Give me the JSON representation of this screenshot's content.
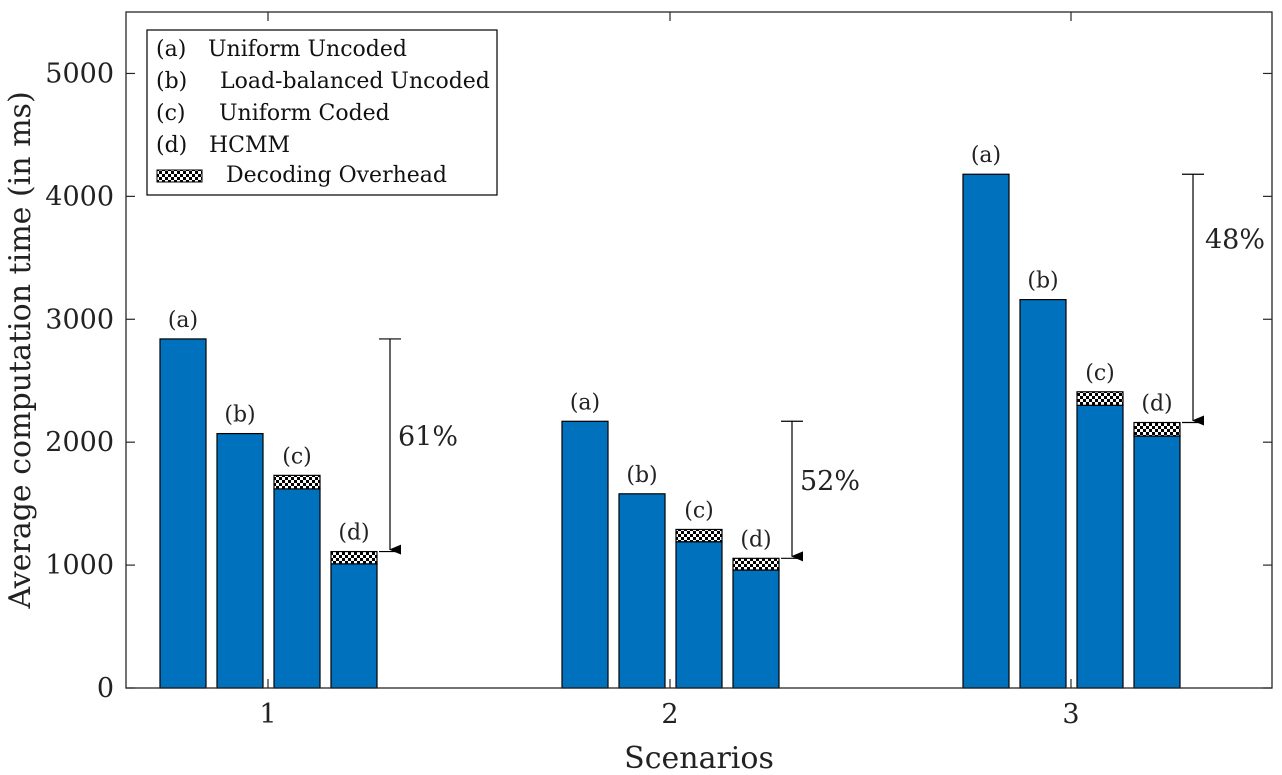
{
  "chart_data": {
    "type": "bar",
    "xlabel": "Scenarios",
    "ylabel": "Average computation time (in ms)",
    "ylim": [
      0,
      5500
    ],
    "yticks": [
      0,
      1000,
      2000,
      3000,
      4000,
      5000
    ],
    "categories": [
      "1",
      "2",
      "3"
    ],
    "bar_labels": [
      "(a)",
      "(b)",
      "(c)",
      "(d)"
    ],
    "series": [
      {
        "name": "Uniform Uncoded",
        "legend_prefix": "(a)",
        "values": [
          2840,
          2170,
          4180
        ],
        "overhead": [
          0,
          0,
          0
        ]
      },
      {
        "name": "Load-balanced Uncoded",
        "legend_prefix": "(b)",
        "values": [
          2070,
          1580,
          3160
        ],
        "overhead": [
          0,
          0,
          0
        ]
      },
      {
        "name": "Uniform Coded",
        "legend_prefix": "(c)",
        "values": [
          1620,
          1190,
          2300
        ],
        "overhead": [
          110,
          100,
          110
        ]
      },
      {
        "name": "HCMM",
        "legend_prefix": "(d)",
        "values": [
          1010,
          960,
          2050
        ],
        "overhead": [
          100,
          95,
          110
        ]
      }
    ],
    "overhead_legend": "Decoding Overhead",
    "annotations": [
      {
        "category": "1",
        "text": "61%",
        "from": 2840,
        "to": 1110
      },
      {
        "category": "2",
        "text": "52%",
        "from": 2170,
        "to": 1055
      },
      {
        "category": "3",
        "text": "48%",
        "from": 4180,
        "to": 2160
      }
    ],
    "grid": false,
    "legend_position": "top-left",
    "colors": {
      "bar": "#0072bd",
      "edge": "#000000",
      "axes": "#262626"
    }
  }
}
